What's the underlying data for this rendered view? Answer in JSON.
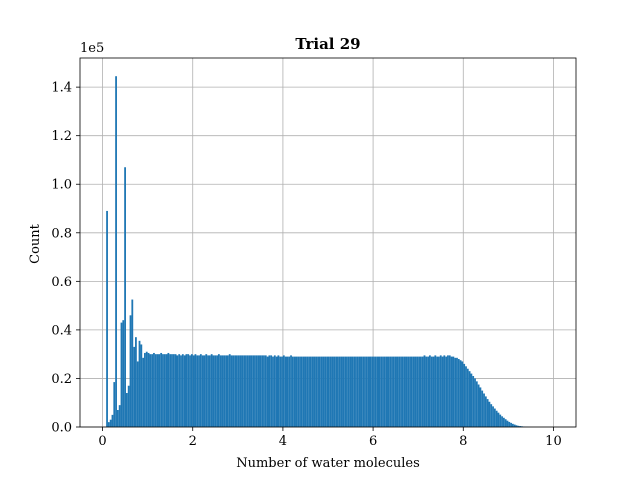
{
  "chart_data": {
    "type": "bar",
    "title": "Trial 29",
    "xlabel": "Number of water molecules",
    "ylabel": "Count",
    "y_offset_label": "1e5",
    "xlim": [
      -0.5,
      10.5
    ],
    "ylim": [
      0,
      1.52
    ],
    "x_ticks": [
      0,
      2,
      4,
      6,
      8,
      10
    ],
    "x_tick_labels": [
      "0",
      "2",
      "4",
      "6",
      "8",
      "10"
    ],
    "y_ticks": [
      0,
      0.2,
      0.4,
      0.6,
      0.8,
      1.0,
      1.2,
      1.4
    ],
    "y_tick_labels": [
      "0.0",
      "0.2",
      "0.4",
      "0.6",
      "0.8",
      "1.0",
      "1.2",
      "1.4"
    ],
    "grid": true,
    "bar_color": "#1f77b4",
    "bin_width": 0.04,
    "x_start": 0.0,
    "values": [
      0,
      0,
      0.89,
      0.02,
      0.03,
      0.05,
      0.185,
      1.445,
      0.07,
      0.09,
      0.43,
      0.44,
      1.07,
      0.14,
      0.17,
      0.46,
      0.525,
      0.33,
      0.37,
      0.27,
      0.355,
      0.34,
      0.285,
      0.305,
      0.31,
      0.305,
      0.3,
      0.3,
      0.305,
      0.3,
      0.3,
      0.3,
      0.305,
      0.3,
      0.3,
      0.3,
      0.305,
      0.3,
      0.3,
      0.3,
      0.3,
      0.295,
      0.3,
      0.295,
      0.3,
      0.295,
      0.3,
      0.3,
      0.295,
      0.3,
      0.295,
      0.3,
      0.295,
      0.295,
      0.3,
      0.295,
      0.295,
      0.3,
      0.295,
      0.295,
      0.3,
      0.295,
      0.295,
      0.295,
      0.3,
      0.295,
      0.295,
      0.295,
      0.295,
      0.295,
      0.3,
      0.295,
      0.295,
      0.295,
      0.295,
      0.295,
      0.295,
      0.295,
      0.295,
      0.295,
      0.295,
      0.295,
      0.295,
      0.295,
      0.295,
      0.295,
      0.295,
      0.295,
      0.295,
      0.295,
      0.295,
      0.29,
      0.295,
      0.295,
      0.29,
      0.295,
      0.29,
      0.295,
      0.29,
      0.29,
      0.295,
      0.29,
      0.29,
      0.29,
      0.295,
      0.29,
      0.29,
      0.29,
      0.29,
      0.29,
      0.29,
      0.29,
      0.29,
      0.29,
      0.29,
      0.29,
      0.29,
      0.29,
      0.29,
      0.29,
      0.29,
      0.29,
      0.29,
      0.29,
      0.29,
      0.29,
      0.29,
      0.29,
      0.29,
      0.29,
      0.29,
      0.29,
      0.29,
      0.29,
      0.29,
      0.29,
      0.29,
      0.29,
      0.29,
      0.29,
      0.29,
      0.29,
      0.29,
      0.29,
      0.29,
      0.29,
      0.29,
      0.29,
      0.29,
      0.29,
      0.29,
      0.29,
      0.29,
      0.29,
      0.29,
      0.29,
      0.29,
      0.29,
      0.29,
      0.29,
      0.29,
      0.29,
      0.29,
      0.29,
      0.29,
      0.29,
      0.29,
      0.29,
      0.29,
      0.29,
      0.29,
      0.29,
      0.29,
      0.29,
      0.29,
      0.29,
      0.29,
      0.29,
      0.295,
      0.29,
      0.29,
      0.295,
      0.29,
      0.29,
      0.295,
      0.29,
      0.29,
      0.295,
      0.29,
      0.295,
      0.29,
      0.295,
      0.295,
      0.29,
      0.29,
      0.285,
      0.285,
      0.28,
      0.275,
      0.27,
      0.26,
      0.25,
      0.24,
      0.23,
      0.22,
      0.21,
      0.2,
      0.188,
      0.175,
      0.163,
      0.15,
      0.138,
      0.126,
      0.115,
      0.104,
      0.094,
      0.085,
      0.076,
      0.067,
      0.059,
      0.051,
      0.044,
      0.038,
      0.032,
      0.026,
      0.021,
      0.017,
      0.013,
      0.01,
      0.007,
      0.005,
      0.004,
      0.003,
      0.002,
      0.001,
      0.0007,
      0.0004,
      0.0002,
      0,
      0
    ]
  }
}
